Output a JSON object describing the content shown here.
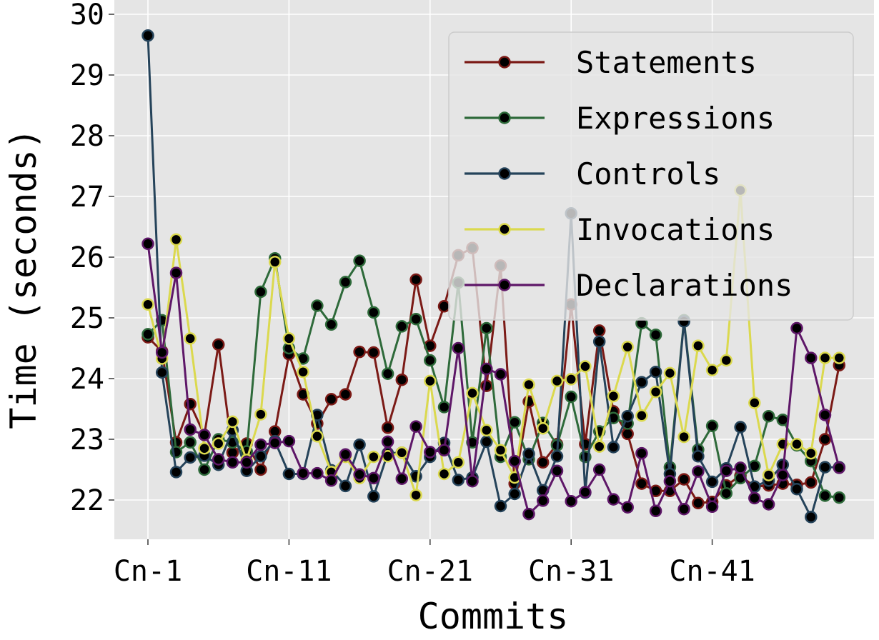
{
  "chart_data": {
    "type": "line",
    "title": "",
    "xlabel": "Commits",
    "ylabel": "Time (seconds)",
    "ylim": [
      21.35,
      30.0
    ],
    "yticks": [
      22,
      23,
      24,
      25,
      26,
      27,
      28,
      29,
      30
    ],
    "xtick_labels": [
      "Cn-1",
      "Cn-11",
      "Cn-21",
      "Cn-31",
      "Cn-41"
    ],
    "xtick_indices": [
      1,
      11,
      21,
      31,
      41
    ],
    "x": [
      1,
      2,
      3,
      4,
      5,
      6,
      7,
      8,
      9,
      10,
      11,
      12,
      13,
      14,
      15,
      16,
      17,
      18,
      19,
      20,
      21,
      22,
      23,
      24,
      25,
      26,
      27,
      28,
      29,
      30,
      31,
      32,
      33,
      34,
      35,
      36,
      37,
      38,
      39,
      40,
      41,
      42,
      43,
      44,
      45,
      46,
      47,
      48,
      49,
      50
    ],
    "grid": true,
    "legend_position": "top-right",
    "series": [
      {
        "name": "Statements",
        "color": "#7b1a16",
        "values": [
          24.68,
          24.45,
          22.95,
          23.58,
          23.07,
          24.56,
          22.78,
          22.93,
          22.5,
          23.13,
          24.4,
          23.74,
          23.26,
          23.66,
          23.74,
          24.44,
          24.43,
          23.19,
          23.98,
          25.63,
          24.54,
          25.19,
          26.03,
          26.15,
          23.88,
          25.86,
          22.27,
          23.62,
          22.62,
          22.92,
          25.22,
          22.92,
          24.79,
          23.46,
          23.09,
          22.27,
          22.15,
          22.15,
          22.34,
          21.95,
          21.97,
          22.24,
          22.4,
          22.22,
          22.24,
          22.27,
          22.25,
          22.29,
          23.0,
          24.22
        ]
      },
      {
        "name": "Expressions",
        "color": "#2e6a3a",
        "values": [
          24.73,
          24.96,
          22.79,
          22.95,
          22.5,
          23.0,
          22.95,
          22.8,
          25.43,
          25.98,
          24.5,
          24.33,
          25.2,
          24.89,
          25.59,
          25.94,
          25.09,
          24.08,
          24.86,
          24.98,
          24.3,
          23.53,
          25.58,
          22.95,
          24.83,
          22.71,
          23.28,
          22.67,
          23.27,
          22.9,
          23.7,
          22.71,
          23.13,
          23.35,
          23.26,
          24.91,
          24.72,
          22.54,
          24.96,
          22.83,
          23.22,
          22.11,
          22.36,
          22.56,
          23.38,
          23.32,
          22.9,
          22.64,
          22.07,
          22.04
        ]
      },
      {
        "name": "Controls",
        "color": "#25435a",
        "values": [
          29.65,
          24.1,
          22.46,
          22.7,
          22.73,
          22.58,
          23.15,
          22.48,
          22.72,
          22.97,
          22.43,
          22.43,
          23.4,
          22.49,
          22.23,
          22.91,
          22.06,
          22.77,
          22.78,
          22.39,
          22.71,
          22.94,
          22.33,
          22.37,
          22.96,
          21.9,
          22.1,
          22.76,
          22.16,
          22.72,
          26.72,
          22.12,
          24.61,
          22.87,
          23.38,
          23.94,
          24.11,
          22.43,
          24.94,
          22.72,
          22.3,
          22.52,
          23.2,
          22.22,
          22.32,
          22.58,
          22.18,
          21.72,
          22.54,
          22.54
        ]
      },
      {
        "name": "Invocations",
        "color": "#dbd94e",
        "values": [
          25.22,
          24.33,
          26.29,
          24.66,
          22.85,
          22.93,
          23.29,
          22.66,
          23.41,
          25.92,
          24.66,
          24.11,
          23.05,
          22.46,
          22.71,
          22.36,
          22.71,
          22.72,
          22.78,
          22.08,
          23.96,
          22.43,
          22.62,
          23.76,
          23.15,
          22.82,
          22.37,
          23.9,
          23.18,
          23.96,
          23.99,
          24.2,
          22.88,
          23.71,
          24.52,
          23.39,
          23.78,
          24.09,
          23.04,
          24.54,
          24.14,
          24.3,
          27.1,
          23.6,
          22.41,
          22.92,
          22.92,
          22.77,
          24.34,
          24.34
        ]
      },
      {
        "name": "Declarations",
        "color": "#5e1768",
        "values": [
          26.22,
          24.43,
          25.74,
          23.16,
          23.07,
          22.67,
          22.62,
          22.62,
          22.91,
          22.94,
          22.97,
          22.44,
          22.44,
          22.32,
          22.75,
          22.42,
          22.36,
          22.96,
          22.35,
          23.21,
          22.79,
          22.82,
          24.5,
          22.31,
          24.16,
          24.07,
          22.64,
          21.77,
          21.99,
          22.48,
          21.98,
          22.13,
          22.5,
          22.01,
          21.88,
          22.77,
          21.82,
          22.31,
          21.85,
          22.47,
          21.89,
          22.48,
          22.53,
          22.03,
          21.93,
          22.41,
          24.83,
          24.34,
          23.4,
          22.53
        ]
      }
    ]
  }
}
